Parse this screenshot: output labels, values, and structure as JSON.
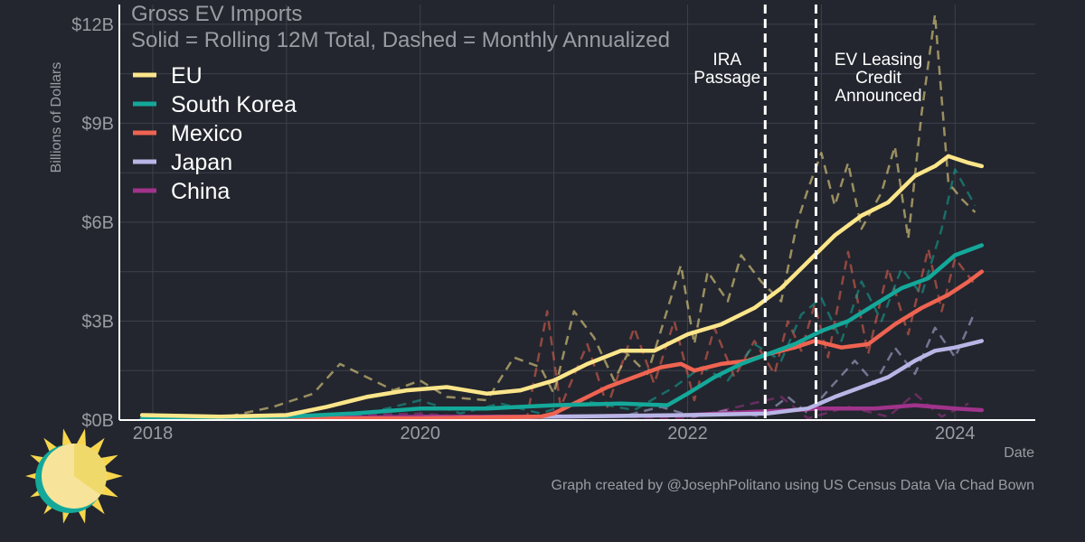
{
  "chart_data": {
    "type": "line",
    "title": "Gross EV Imports",
    "subtitle": "Solid = Rolling 12M Total, Dashed = Monthly Annualized",
    "xlabel": "Date",
    "ylabel": "Billions of Dollars",
    "xlim": [
      2017.75,
      2024.6
    ],
    "ylim": [
      0,
      12.6
    ],
    "grid": true,
    "legend_position": "top-left",
    "x_ticks": [
      2018,
      2020,
      2022,
      2024
    ],
    "y_ticks": [
      {
        "value": 0,
        "label": "$0B"
      },
      {
        "value": 3,
        "label": "$3B"
      },
      {
        "value": 6,
        "label": "$6B"
      },
      {
        "value": 9,
        "label": "$9B"
      },
      {
        "value": 12,
        "label": "$12B"
      }
    ],
    "annotations": [
      {
        "x": 2022.58,
        "lines": [
          "IRA",
          "Passage"
        ],
        "side": "left"
      },
      {
        "x": 2022.96,
        "lines": [
          "EV Leasing",
          "Credit",
          "Announced"
        ],
        "side": "right"
      }
    ],
    "series": [
      {
        "name": "EU",
        "color": "#fde68a",
        "rolling": [
          [
            2017.92,
            0.15
          ],
          [
            2018.5,
            0.1
          ],
          [
            2019.0,
            0.15
          ],
          [
            2019.3,
            0.4
          ],
          [
            2019.6,
            0.7
          ],
          [
            2019.9,
            0.9
          ],
          [
            2020.2,
            1.0
          ],
          [
            2020.5,
            0.8
          ],
          [
            2020.75,
            0.9
          ],
          [
            2021.0,
            1.2
          ],
          [
            2021.25,
            1.7
          ],
          [
            2021.5,
            2.1
          ],
          [
            2021.75,
            2.1
          ],
          [
            2022.0,
            2.6
          ],
          [
            2022.25,
            2.9
          ],
          [
            2022.5,
            3.4
          ],
          [
            2022.7,
            4.0
          ],
          [
            2022.9,
            4.8
          ],
          [
            2023.1,
            5.6
          ],
          [
            2023.3,
            6.2
          ],
          [
            2023.5,
            6.6
          ],
          [
            2023.7,
            7.4
          ],
          [
            2023.85,
            7.7
          ],
          [
            2023.95,
            8.0
          ],
          [
            2024.1,
            7.8
          ],
          [
            2024.2,
            7.7
          ]
        ],
        "monthly": [
          [
            2018.0,
            0.1
          ],
          [
            2018.5,
            0.05
          ],
          [
            2018.9,
            0.4
          ],
          [
            2019.2,
            0.8
          ],
          [
            2019.4,
            1.7
          ],
          [
            2019.6,
            1.3
          ],
          [
            2019.8,
            0.9
          ],
          [
            2020.0,
            1.2
          ],
          [
            2020.2,
            0.7
          ],
          [
            2020.5,
            0.6
          ],
          [
            2020.7,
            1.9
          ],
          [
            2020.9,
            1.6
          ],
          [
            2021.0,
            0.8
          ],
          [
            2021.15,
            3.3
          ],
          [
            2021.3,
            2.5
          ],
          [
            2021.45,
            1.2
          ],
          [
            2021.55,
            2.0
          ],
          [
            2021.7,
            1.4
          ],
          [
            2021.8,
            2.7
          ],
          [
            2021.95,
            4.7
          ],
          [
            2022.05,
            2.3
          ],
          [
            2022.15,
            4.5
          ],
          [
            2022.3,
            3.6
          ],
          [
            2022.4,
            5.0
          ],
          [
            2022.55,
            4.2
          ],
          [
            2022.7,
            3.6
          ],
          [
            2022.82,
            6.0
          ],
          [
            2022.9,
            7.0
          ],
          [
            2023.0,
            8.1
          ],
          [
            2023.1,
            6.5
          ],
          [
            2023.2,
            7.8
          ],
          [
            2023.3,
            5.8
          ],
          [
            2023.45,
            6.9
          ],
          [
            2023.55,
            8.3
          ],
          [
            2023.65,
            5.5
          ],
          [
            2023.75,
            9.3
          ],
          [
            2023.85,
            12.3
          ],
          [
            2023.95,
            7.2
          ],
          [
            2024.05,
            6.7
          ],
          [
            2024.15,
            6.3
          ]
        ]
      },
      {
        "name": "South Korea",
        "color": "#14a89a",
        "rolling": [
          [
            2017.92,
            0.05
          ],
          [
            2019.0,
            0.1
          ],
          [
            2019.5,
            0.2
          ],
          [
            2020.0,
            0.35
          ],
          [
            2020.5,
            0.35
          ],
          [
            2020.75,
            0.4
          ],
          [
            2021.0,
            0.45
          ],
          [
            2021.5,
            0.5
          ],
          [
            2021.85,
            0.45
          ],
          [
            2022.0,
            0.8
          ],
          [
            2022.2,
            1.3
          ],
          [
            2022.4,
            1.7
          ],
          [
            2022.6,
            2.0
          ],
          [
            2022.8,
            2.3
          ],
          [
            2023.0,
            2.7
          ],
          [
            2023.2,
            3.0
          ],
          [
            2023.4,
            3.5
          ],
          [
            2023.6,
            4.0
          ],
          [
            2023.8,
            4.3
          ],
          [
            2024.0,
            5.0
          ],
          [
            2024.2,
            5.3
          ]
        ],
        "monthly": [
          [
            2018.0,
            0.05
          ],
          [
            2019.5,
            0.1
          ],
          [
            2020.0,
            0.6
          ],
          [
            2020.3,
            0.2
          ],
          [
            2020.6,
            0.5
          ],
          [
            2020.9,
            0.2
          ],
          [
            2021.2,
            0.6
          ],
          [
            2021.6,
            0.3
          ],
          [
            2021.9,
            1.0
          ],
          [
            2022.1,
            1.6
          ],
          [
            2022.3,
            1.2
          ],
          [
            2022.5,
            2.3
          ],
          [
            2022.7,
            1.8
          ],
          [
            2022.85,
            3.2
          ],
          [
            2023.0,
            3.7
          ],
          [
            2023.15,
            2.4
          ],
          [
            2023.3,
            4.2
          ],
          [
            2023.45,
            3.0
          ],
          [
            2023.6,
            4.6
          ],
          [
            2023.75,
            3.8
          ],
          [
            2023.9,
            5.8
          ],
          [
            2024.0,
            7.6
          ],
          [
            2024.15,
            6.5
          ]
        ]
      },
      {
        "name": "Mexico",
        "color": "#ef6351",
        "rolling": [
          [
            2017.92,
            0.05
          ],
          [
            2019.0,
            0.05
          ],
          [
            2020.0,
            0.05
          ],
          [
            2020.9,
            0.1
          ],
          [
            2021.0,
            0.2
          ],
          [
            2021.2,
            0.6
          ],
          [
            2021.4,
            1.0
          ],
          [
            2021.6,
            1.3
          ],
          [
            2021.8,
            1.6
          ],
          [
            2021.95,
            1.7
          ],
          [
            2022.05,
            1.5
          ],
          [
            2022.25,
            1.7
          ],
          [
            2022.45,
            1.8
          ],
          [
            2022.6,
            2.0
          ],
          [
            2022.8,
            2.2
          ],
          [
            2022.95,
            2.4
          ],
          [
            2023.15,
            2.2
          ],
          [
            2023.35,
            2.3
          ],
          [
            2023.55,
            2.9
          ],
          [
            2023.75,
            3.4
          ],
          [
            2023.95,
            3.8
          ],
          [
            2024.1,
            4.2
          ],
          [
            2024.2,
            4.5
          ]
        ],
        "monthly": [
          [
            2018.0,
            0.05
          ],
          [
            2020.8,
            0.1
          ],
          [
            2020.95,
            3.3
          ],
          [
            2021.05,
            0.4
          ],
          [
            2021.25,
            2.3
          ],
          [
            2021.4,
            0.4
          ],
          [
            2021.6,
            2.8
          ],
          [
            2021.75,
            1.1
          ],
          [
            2021.9,
            3.0
          ],
          [
            2022.05,
            0.6
          ],
          [
            2022.2,
            2.8
          ],
          [
            2022.35,
            1.3
          ],
          [
            2022.5,
            2.4
          ],
          [
            2022.65,
            1.4
          ],
          [
            2022.75,
            3.0
          ],
          [
            2022.85,
            2.1
          ],
          [
            2022.95,
            3.5
          ],
          [
            2023.05,
            1.9
          ],
          [
            2023.2,
            5.1
          ],
          [
            2023.35,
            2.0
          ],
          [
            2023.5,
            4.6
          ],
          [
            2023.65,
            2.6
          ],
          [
            2023.8,
            5.2
          ],
          [
            2023.9,
            3.3
          ],
          [
            2024.0,
            4.9
          ],
          [
            2024.15,
            4.1
          ]
        ]
      },
      {
        "name": "Japan",
        "color": "#b8b6e6",
        "rolling": [
          [
            2017.92,
            0.05
          ],
          [
            2020.0,
            0.05
          ],
          [
            2021.0,
            0.1
          ],
          [
            2022.0,
            0.15
          ],
          [
            2022.6,
            0.2
          ],
          [
            2022.9,
            0.35
          ],
          [
            2023.1,
            0.7
          ],
          [
            2023.3,
            1.0
          ],
          [
            2023.5,
            1.3
          ],
          [
            2023.7,
            1.8
          ],
          [
            2023.85,
            2.1
          ],
          [
            2024.0,
            2.2
          ],
          [
            2024.2,
            2.4
          ]
        ],
        "monthly": [
          [
            2018.0,
            0.05
          ],
          [
            2021.5,
            0.1
          ],
          [
            2021.8,
            0.4
          ],
          [
            2022.05,
            0.1
          ],
          [
            2022.3,
            0.3
          ],
          [
            2022.55,
            0.1
          ],
          [
            2022.75,
            0.7
          ],
          [
            2022.9,
            0.2
          ],
          [
            2023.05,
            0.9
          ],
          [
            2023.25,
            1.8
          ],
          [
            2023.4,
            1.1
          ],
          [
            2023.55,
            2.2
          ],
          [
            2023.7,
            1.4
          ],
          [
            2023.85,
            2.8
          ],
          [
            2024.0,
            1.9
          ],
          [
            2024.15,
            3.3
          ]
        ]
      },
      {
        "name": "China",
        "color": "#a0338b",
        "rolling": [
          [
            2017.92,
            0.05
          ],
          [
            2019.0,
            0.05
          ],
          [
            2020.0,
            0.1
          ],
          [
            2021.0,
            0.1
          ],
          [
            2022.0,
            0.15
          ],
          [
            2022.5,
            0.25
          ],
          [
            2022.8,
            0.3
          ],
          [
            2023.0,
            0.35
          ],
          [
            2023.4,
            0.35
          ],
          [
            2023.7,
            0.45
          ],
          [
            2024.0,
            0.35
          ],
          [
            2024.2,
            0.3
          ]
        ],
        "monthly": [
          [
            2018.0,
            0.02
          ],
          [
            2020.0,
            0.2
          ],
          [
            2020.5,
            0.05
          ],
          [
            2021.0,
            0.15
          ],
          [
            2022.0,
            0.05
          ],
          [
            2022.7,
            0.7
          ],
          [
            2022.9,
            0.05
          ],
          [
            2023.2,
            0.4
          ],
          [
            2023.5,
            0.1
          ],
          [
            2023.7,
            0.8
          ],
          [
            2023.9,
            0.1
          ],
          [
            2024.1,
            0.5
          ]
        ]
      }
    ]
  },
  "caption": "Graph created by @JosephPolitano using US Census Data Via Chad Bown",
  "logo": {
    "name": "sun-logo"
  }
}
